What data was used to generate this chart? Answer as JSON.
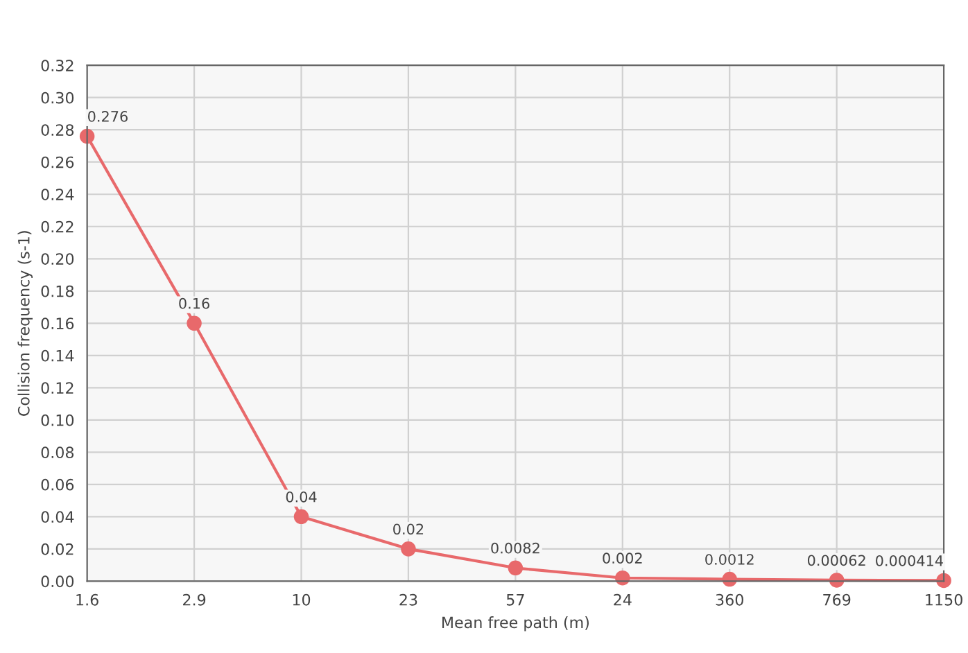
{
  "chart_data": {
    "type": "line",
    "xlabel": "Mean free path (m)",
    "ylabel": "Collision frequency (s-1)",
    "categories": [
      "1.6",
      "2.9",
      "10",
      "23",
      "57",
      "24",
      "360",
      "769",
      "1150"
    ],
    "series": [
      {
        "color": "#e8696b",
        "values": [
          0.276,
          0.16,
          0.04,
          0.02,
          0.0082,
          0.002,
          0.0012,
          0.00062,
          0.000414
        ]
      }
    ],
    "ylim": [
      0,
      0.32
    ],
    "yticks": [
      {
        "value": 0,
        "label": "0.00"
      },
      {
        "value": 0.02,
        "label": "0.02"
      },
      {
        "value": 0.04,
        "label": "0.04"
      },
      {
        "value": 0.06,
        "label": "0.06"
      },
      {
        "value": 0.08,
        "label": "0.08"
      },
      {
        "value": 0.1,
        "label": "0.10"
      },
      {
        "value": 0.12,
        "label": "0.12"
      },
      {
        "value": 0.14,
        "label": "0.14"
      },
      {
        "value": 0.16,
        "label": "0.16"
      },
      {
        "value": 0.18,
        "label": "0.18"
      },
      {
        "value": 0.2,
        "label": "0.20"
      },
      {
        "value": 0.22,
        "label": "0.22"
      },
      {
        "value": 0.24,
        "label": "0.24"
      },
      {
        "value": 0.26,
        "label": "0.26"
      },
      {
        "value": 0.28,
        "label": "0.28"
      },
      {
        "value": 0.3,
        "label": "0.30"
      },
      {
        "value": 0.32,
        "label": "0.32"
      }
    ],
    "grid": true,
    "marker": "circle",
    "line_style": "solid",
    "data_labels": true
  }
}
